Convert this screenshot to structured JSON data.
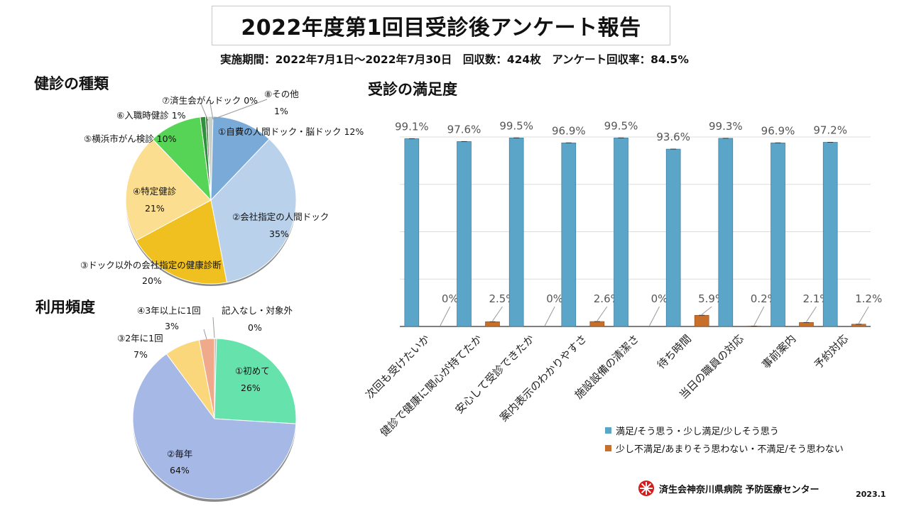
{
  "report": {
    "title": "2022年度第1回目受診後アンケート報告",
    "subtitle": "実施期間：2022年7月1日～2022年7月30日　回収数：424枚　アンケート回収率：84.5%",
    "footer_org": "済生会神奈川県病院 予防医療センター",
    "footer_date": "2023.1"
  },
  "chart_data": [
    {
      "type": "pie",
      "title": "健診の種類",
      "slices": [
        {
          "label": "①自費の人間ドック・脳ドック",
          "value": 12,
          "value_text": "12%",
          "color": "#7aaad8"
        },
        {
          "label": "②会社指定の人間ドック",
          "value": 35,
          "value_text": "35%",
          "color": "#b9d1ea"
        },
        {
          "label": "③ドック以外の会社指定の健康診断",
          "value": 20,
          "value_text": "20%",
          "color": "#f0c020"
        },
        {
          "label": "④特定健診",
          "value": 21,
          "value_text": "21%",
          "color": "#fbde8f"
        },
        {
          "label": "⑤横浜市がん検診",
          "value": 10,
          "value_text": "10%",
          "color": "#55d455"
        },
        {
          "label": "⑥入職時健診",
          "value": 1,
          "value_text": "1%",
          "color": "#2f8f3a"
        },
        {
          "label": "⑦済生会がんドック",
          "value": 0,
          "value_text": "0%",
          "color": "#3a6a3a"
        },
        {
          "label": "⑧その他",
          "value": 1,
          "value_text": "1%",
          "color": "#c8d0c8"
        }
      ]
    },
    {
      "type": "pie",
      "title": "利用頻度",
      "slices": [
        {
          "label": "①初めて",
          "value": 26,
          "value_text": "26%",
          "color": "#66e3ad"
        },
        {
          "label": "②毎年",
          "value": 64,
          "value_text": "64%",
          "color": "#a6b8e6"
        },
        {
          "label": "③2年に1回",
          "value": 7,
          "value_text": "7%",
          "color": "#fbd77c"
        },
        {
          "label": "④3年以上に1回",
          "value": 3,
          "value_text": "3%",
          "color": "#f0a98a"
        },
        {
          "label": "記入なし・対象外",
          "value": 0,
          "value_text": "0%",
          "color": "#bbbbbb"
        }
      ]
    },
    {
      "type": "bar",
      "title": "受診の満足度",
      "categories": [
        "次回も受けたいか",
        "健診で健康に関心が持てたか",
        "安心して受診できたか",
        "案内表示のわかりやすさ",
        "施設設備の清潔さ",
        "待ち時間",
        "当日の職員の対応",
        "事前案内",
        "予約対応"
      ],
      "series": [
        {
          "name": "満足/そう思う・少し満足/少しそう思う",
          "values": [
            99.1,
            97.6,
            99.5,
            96.9,
            99.5,
            93.6,
            99.3,
            96.9,
            97.2
          ],
          "labels": [
            "99.1%",
            "97.6%",
            "99.5%",
            "96.9%",
            "99.5%",
            "93.6%",
            "99.3%",
            "96.9%",
            "97.2%"
          ],
          "color": "#5aa5c8"
        },
        {
          "name": "少し不満足/あまりそう思わない・不満足/そう思わない",
          "values": [
            0,
            2.5,
            0,
            2.6,
            0,
            5.9,
            0.2,
            2.1,
            1.2
          ],
          "labels": [
            "0%",
            "2.5%",
            "0%",
            "2.6%",
            "0%",
            "5.9%",
            "0.2%",
            "2.1%",
            "1.2%"
          ],
          "color": "#c8702a"
        }
      ],
      "ylim": [
        0,
        100
      ],
      "grid": true,
      "legend": "bottom-right"
    }
  ]
}
